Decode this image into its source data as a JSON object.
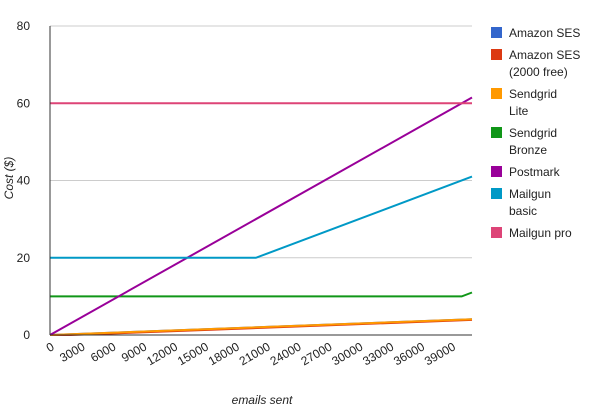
{
  "chart_data": {
    "type": "line",
    "title": "",
    "xlabel": "emails sent",
    "ylabel": "Cost ($)",
    "xlim": [
      0,
      41000
    ],
    "ylim": [
      0,
      80
    ],
    "yticks": [
      0,
      20,
      40,
      60,
      80
    ],
    "ytick_labels": [
      "0",
      "20",
      "40",
      "60",
      "80"
    ],
    "xticks": [
      0,
      3000,
      6000,
      9000,
      12000,
      15000,
      18000,
      21000,
      24000,
      27000,
      30000,
      33000,
      36000,
      39000
    ],
    "xtick_labels": [
      "0",
      "3000",
      "6000",
      "9000",
      "12000",
      "15000",
      "18000",
      "21000",
      "24000",
      "27000",
      "30000",
      "33000",
      "36000",
      "39000"
    ],
    "grid": true,
    "legend_position": "right",
    "series": [
      {
        "name": "Amazon SES",
        "color": "#3366cc",
        "x": [
          0,
          41000
        ],
        "y": [
          0,
          4.1
        ]
      },
      {
        "name": "Amazon SES (2000 free)",
        "color": "#dc3912",
        "x": [
          0,
          2000,
          41000
        ],
        "y": [
          0,
          0,
          3.9
        ]
      },
      {
        "name": "Sendgrid Lite",
        "color": "#ff9900",
        "x": [
          0,
          41000
        ],
        "y": [
          0,
          4.1
        ]
      },
      {
        "name": "Sendgrid Bronze",
        "color": "#109618",
        "x": [
          0,
          40000,
          41000
        ],
        "y": [
          10,
          10,
          11
        ]
      },
      {
        "name": "Postmark",
        "color": "#990099",
        "x": [
          0,
          41000
        ],
        "y": [
          0,
          61.5
        ]
      },
      {
        "name": "Mailgun basic",
        "color": "#0099c6",
        "x": [
          0,
          20000,
          41000
        ],
        "y": [
          20,
          20,
          41
        ]
      },
      {
        "name": "Mailgun pro",
        "color": "#dd4477",
        "x": [
          0,
          41000
        ],
        "y": [
          60,
          60
        ]
      }
    ]
  }
}
